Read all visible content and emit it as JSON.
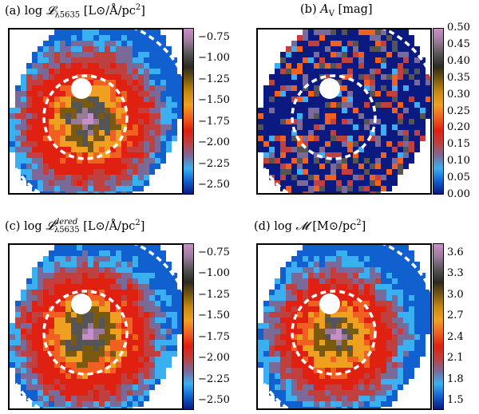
{
  "figure": {
    "panels": [
      {
        "id": "a",
        "title_prefix": "(a)  log ",
        "title_symbol": "𝓛",
        "title_sub": "λ5635",
        "title_sup": "",
        "title_units": " [L⊙/Å/pc",
        "title_units_sup": "2",
        "title_close": "]",
        "colorbar_labels": [
          "−0.75",
          "−1.00",
          "−1.25",
          "−1.50",
          "−1.75",
          "−2.00",
          "−2.25",
          "−2.50"
        ],
        "colormap": "luminosity"
      },
      {
        "id": "b",
        "title_prefix": "(b) ",
        "title_symbol": "A",
        "title_sub": "V",
        "title_sup": "",
        "title_units": " [mag]",
        "title_units_sup": "",
        "title_close": "",
        "colorbar_labels": [
          "0.50",
          "0.45",
          "0.40",
          "0.35",
          "0.30",
          "0.25",
          "0.20",
          "0.15",
          "0.10",
          "0.05",
          "0.00"
        ],
        "colormap": "extinction"
      },
      {
        "id": "c",
        "title_prefix": "(c)  log ",
        "title_symbol": "𝓛",
        "title_sub": "λ5635",
        "title_sup": "dered",
        "title_units": " [L⊙/Å/pc",
        "title_units_sup": "2",
        "title_close": "]",
        "colorbar_labels": [
          "−0.75",
          "−1.00",
          "−1.25",
          "−1.50",
          "−1.75",
          "−2.00",
          "−2.25",
          "−2.50"
        ],
        "colormap": "luminosity"
      },
      {
        "id": "d",
        "title_prefix": "(d)  log ",
        "title_symbol": "𝓜",
        "title_sub": "",
        "title_sup": "",
        "title_units": " [M⊙/pc",
        "title_units_sup": "2",
        "title_close": "]",
        "colorbar_labels": [
          "3.6",
          "3.3",
          "3.0",
          "2.7",
          "2.4",
          "2.1",
          "1.8",
          "1.5"
        ],
        "colormap": "mass"
      }
    ]
  },
  "colors": {
    "frame": "#000000",
    "dashed_circle": "#ffffff",
    "blank_region": "#ffffff"
  }
}
